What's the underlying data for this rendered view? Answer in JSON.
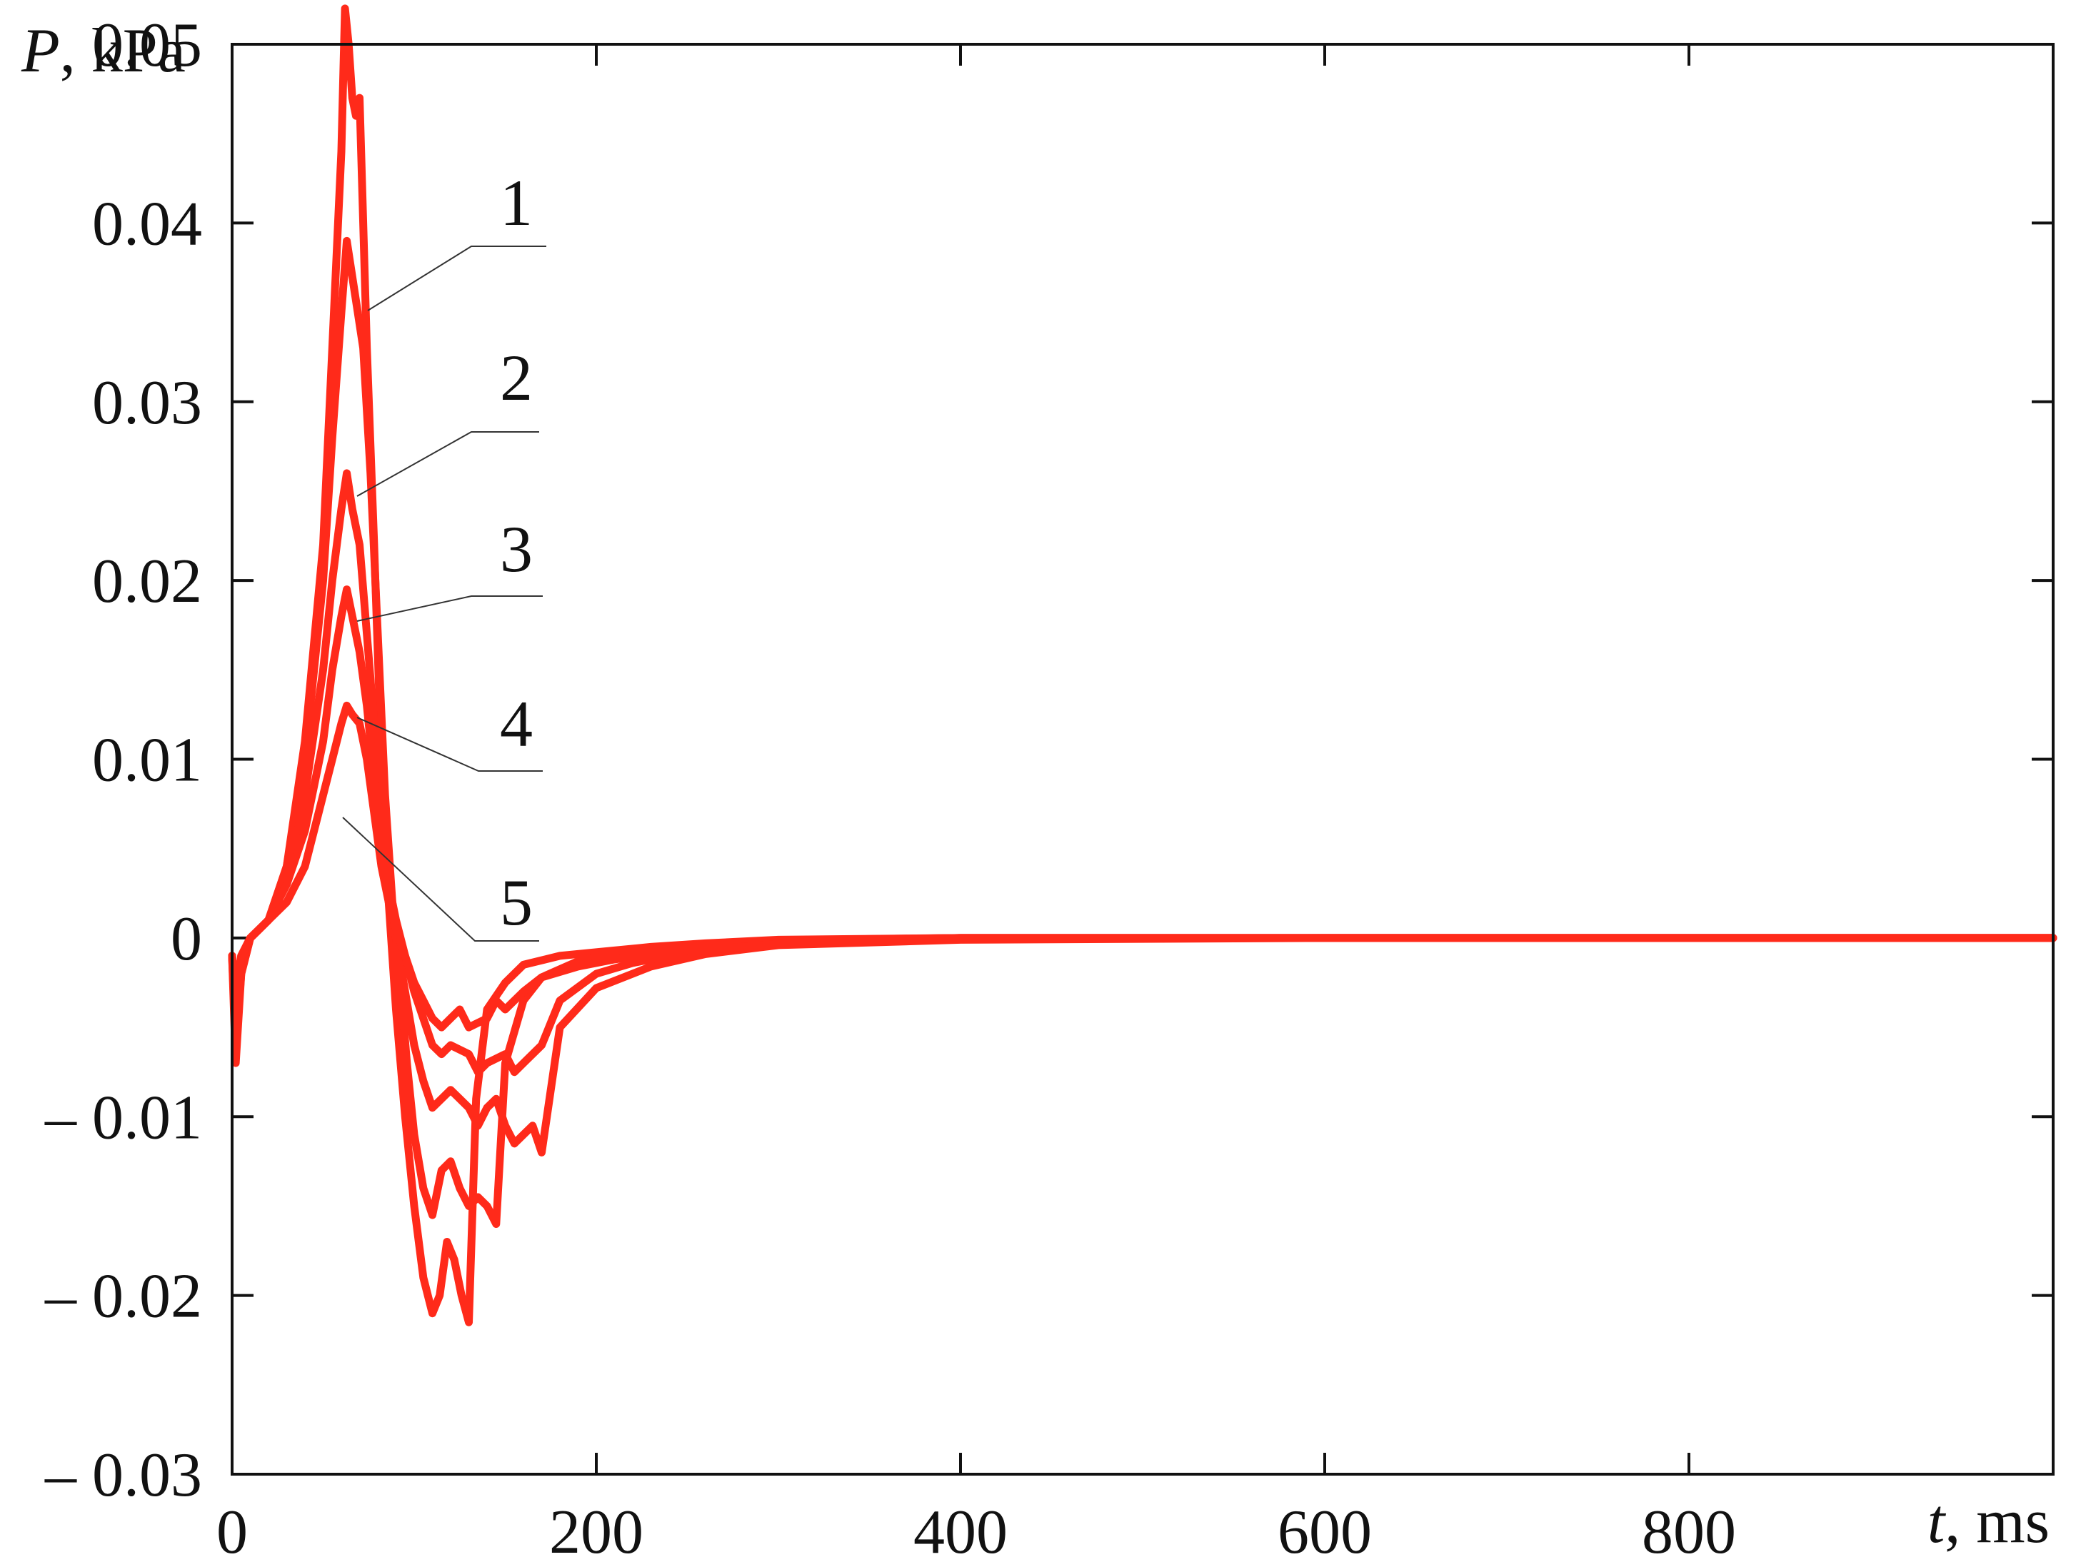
{
  "chart_data": {
    "type": "line",
    "xlabel_symbol": "t",
    "xlabel_unit": ", ms",
    "ylabel_symbol": "P",
    "ylabel_unit": ", kPa",
    "xlim": [
      0,
      1000
    ],
    "ylim": [
      -0.03,
      0.05
    ],
    "x_ticks": [
      0,
      200,
      400,
      600,
      800
    ],
    "x_tick_labels": [
      "0",
      "200",
      "400",
      "600",
      "800"
    ],
    "y_ticks": [
      -0.03,
      -0.02,
      -0.01,
      0,
      0.01,
      0.02,
      0.03,
      0.04,
      0.05
    ],
    "y_tick_labels": [
      "– 0.03",
      "– 0.02",
      "– 0.01",
      "0",
      "0.01",
      "0.02",
      "0.03",
      "0.04",
      "0.05"
    ],
    "grid": false,
    "line_color": "#ff2a1a",
    "series": [
      {
        "label": "1",
        "x": [
          0,
          2,
          5,
          10,
          20,
          30,
          40,
          50,
          55,
          60,
          62,
          64,
          66,
          68,
          70,
          72,
          74,
          78,
          82,
          86,
          90,
          95,
          100,
          105,
          110,
          114,
          118,
          122,
          126,
          130,
          134,
          140,
          150,
          160,
          180,
          200,
          230,
          260,
          300,
          400,
          600,
          800,
          1000
        ],
        "y": [
          -0.001,
          -0.007,
          -0.002,
          0,
          0.001,
          0.004,
          0.011,
          0.022,
          0.033,
          0.044,
          0.052,
          0.05,
          0.047,
          0.046,
          0.047,
          0.04,
          0.033,
          0.022,
          0.01,
          0.002,
          -0.004,
          -0.01,
          -0.015,
          -0.019,
          -0.021,
          -0.02,
          -0.017,
          -0.018,
          -0.02,
          -0.0215,
          -0.009,
          -0.004,
          -0.0025,
          -0.0015,
          -0.001,
          -0.0008,
          -0.0005,
          -0.0003,
          -0.0001,
          0,
          0,
          0,
          0
        ]
      },
      {
        "label": "2",
        "x": [
          0,
          2,
          5,
          10,
          20,
          30,
          40,
          50,
          55,
          60,
          63,
          66,
          69,
          72,
          76,
          80,
          84,
          88,
          92,
          96,
          100,
          105,
          110,
          115,
          120,
          125,
          130,
          135,
          140,
          145,
          150,
          160,
          170,
          190,
          210,
          240,
          280,
          320,
          400,
          600,
          800,
          1000
        ],
        "y": [
          -0.001,
          -0.006,
          -0.002,
          0,
          0.001,
          0.004,
          0.01,
          0.02,
          0.028,
          0.035,
          0.039,
          0.037,
          0.035,
          0.033,
          0.026,
          0.017,
          0.008,
          0.002,
          -0.002,
          -0.007,
          -0.011,
          -0.014,
          -0.0155,
          -0.013,
          -0.0125,
          -0.014,
          -0.015,
          -0.0145,
          -0.015,
          -0.016,
          -0.007,
          -0.0035,
          -0.0022,
          -0.0013,
          -0.0009,
          -0.0006,
          -0.0003,
          -0.0001,
          0,
          0,
          0,
          0
        ]
      },
      {
        "label": "3",
        "x": [
          0,
          2,
          5,
          10,
          20,
          30,
          40,
          50,
          55,
          60,
          63,
          66,
          70,
          74,
          78,
          82,
          86,
          90,
          95,
          100,
          105,
          110,
          115,
          120,
          125,
          130,
          135,
          140,
          145,
          150,
          155,
          160,
          165,
          170,
          180,
          200,
          230,
          260,
          300,
          400,
          600,
          800,
          1000
        ],
        "y": [
          -0.001,
          -0.005,
          -0.001,
          0,
          0.001,
          0.003,
          0.008,
          0.015,
          0.02,
          0.024,
          0.026,
          0.024,
          0.022,
          0.017,
          0.012,
          0.007,
          0.003,
          0,
          -0.003,
          -0.006,
          -0.008,
          -0.0095,
          -0.009,
          -0.0085,
          -0.009,
          -0.0095,
          -0.0105,
          -0.0095,
          -0.009,
          -0.0105,
          -0.0115,
          -0.011,
          -0.0105,
          -0.012,
          -0.005,
          -0.0028,
          -0.0016,
          -0.0009,
          -0.0004,
          -0.0001,
          0,
          0,
          0
        ]
      },
      {
        "label": "4",
        "x": [
          0,
          2,
          5,
          10,
          20,
          30,
          40,
          50,
          55,
          60,
          63,
          66,
          70,
          74,
          78,
          82,
          86,
          90,
          95,
          100,
          110,
          115,
          120,
          130,
          135,
          140,
          150,
          155,
          160,
          170,
          180,
          200,
          220,
          250,
          290,
          330,
          400,
          600,
          800,
          1000
        ],
        "y": [
          -0.001,
          -0.004,
          -0.001,
          0,
          0.001,
          0.003,
          0.006,
          0.011,
          0.015,
          0.018,
          0.0195,
          0.018,
          0.016,
          0.013,
          0.009,
          0.006,
          0.003,
          0.001,
          -0.001,
          -0.003,
          -0.006,
          -0.0065,
          -0.006,
          -0.0065,
          -0.0075,
          -0.007,
          -0.0065,
          -0.0075,
          -0.007,
          -0.006,
          -0.0035,
          -0.002,
          -0.0014,
          -0.0008,
          -0.0004,
          -0.0001,
          0,
          0,
          0,
          0
        ]
      },
      {
        "label": "5",
        "x": [
          0,
          2,
          5,
          10,
          20,
          30,
          40,
          50,
          55,
          60,
          63,
          66,
          70,
          74,
          78,
          82,
          86,
          90,
          95,
          100,
          105,
          110,
          115,
          120,
          125,
          130,
          140,
          145,
          150,
          160,
          170,
          190,
          210,
          240,
          280,
          320,
          400,
          600,
          800,
          1000
        ],
        "y": [
          -0.001,
          -0.003,
          -0.001,
          0,
          0.001,
          0.002,
          0.004,
          0.008,
          0.01,
          0.012,
          0.013,
          0.0125,
          0.012,
          0.01,
          0.007,
          0.004,
          0.002,
          0.0005,
          -0.001,
          -0.0025,
          -0.0035,
          -0.0045,
          -0.005,
          -0.0045,
          -0.004,
          -0.005,
          -0.0045,
          -0.0035,
          -0.004,
          -0.003,
          -0.0022,
          -0.0016,
          -0.0012,
          -0.0008,
          -0.0005,
          -0.0002,
          0,
          0,
          0,
          0
        ]
      }
    ]
  }
}
